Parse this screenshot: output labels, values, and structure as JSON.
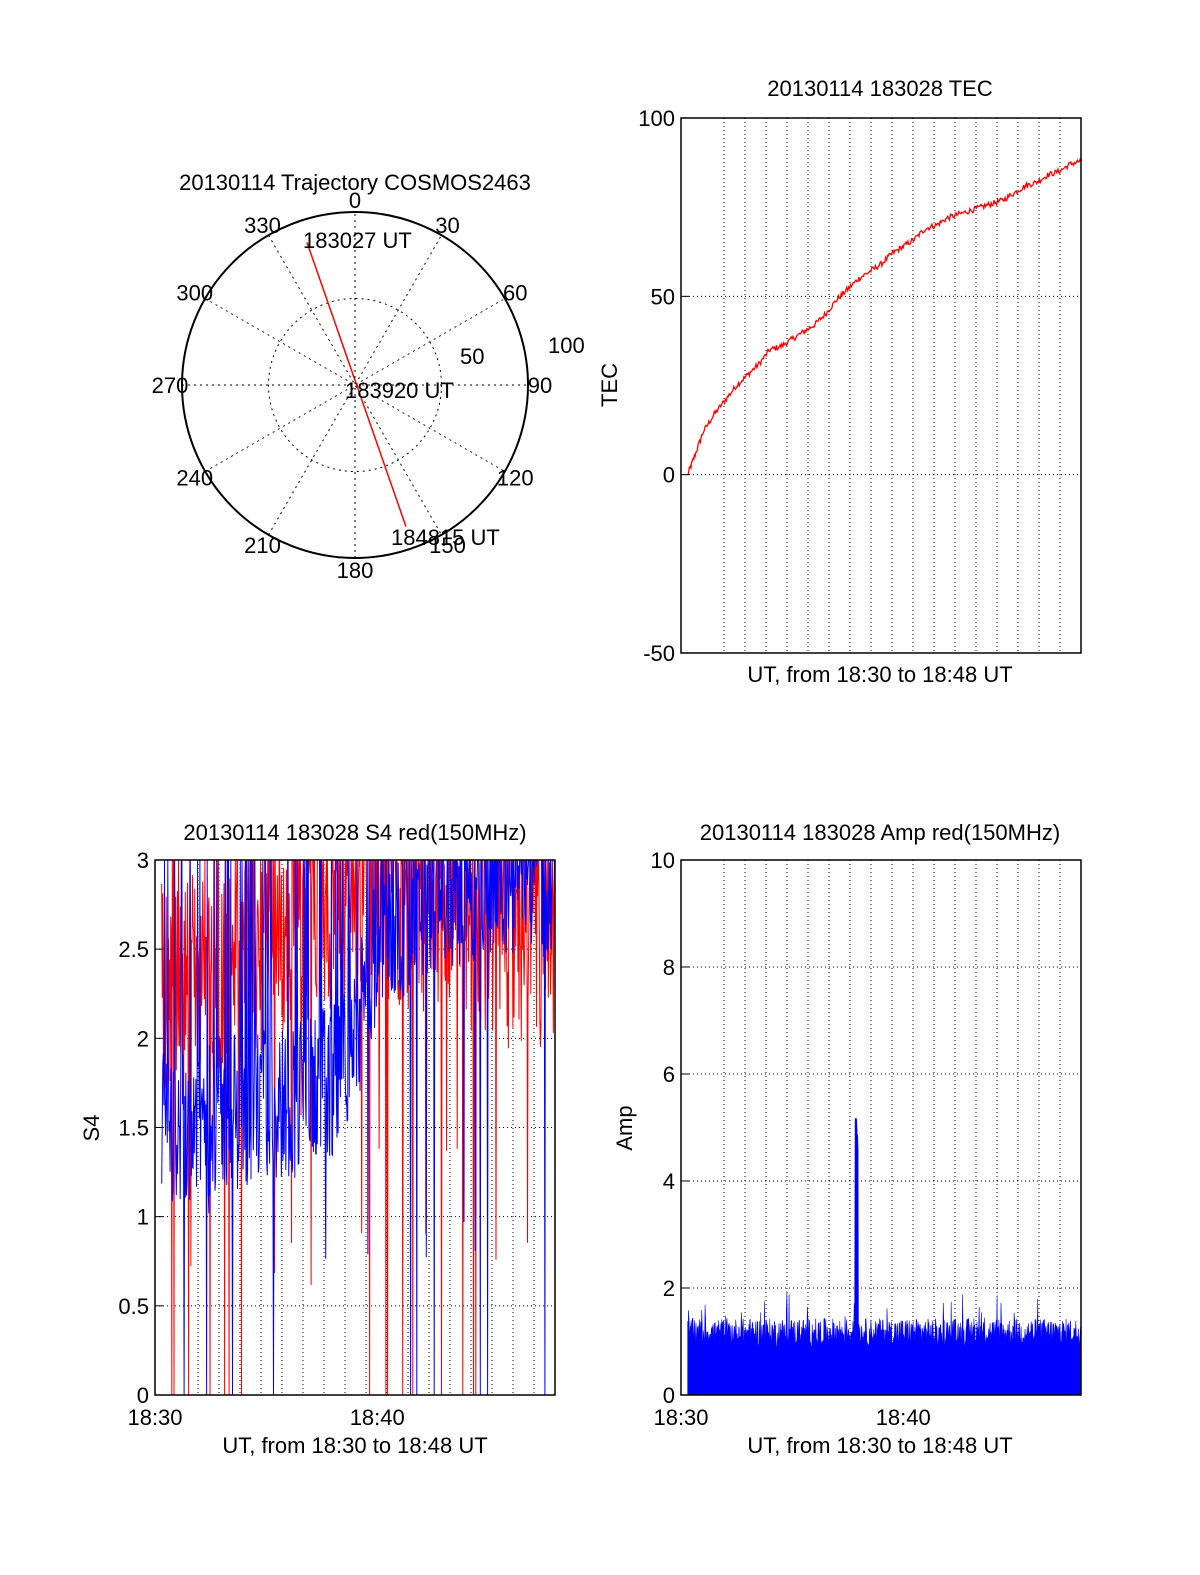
{
  "chart_data": [
    {
      "type": "polar",
      "title": "20130114 Trajectory COSMOS2463",
      "angle_labels": [
        "0",
        "30",
        "60",
        "90",
        "120",
        "150",
        "180",
        "210",
        "240",
        "270",
        "300",
        "330"
      ],
      "radial_labels": [
        "50",
        "100"
      ],
      "radial_range": [
        0,
        100
      ],
      "grid": true,
      "trajectory": {
        "color": "#ff0000",
        "start": {
          "label": "183027 UT",
          "azimuth": 341.4,
          "zenith": 87
        },
        "mid": {
          "label": "183920 UT",
          "azimuth": 0,
          "zenith": 0
        },
        "end": {
          "label": "184815 UT",
          "azimuth": 160.2,
          "zenith": 87
        }
      }
    },
    {
      "type": "line",
      "title": "20130114 183028 TEC",
      "xlabel": "UT, from 18:30 to 18:48 UT",
      "ylabel": "TEC",
      "xlim": [
        0,
        18
      ],
      "ylim": [
        -50,
        100
      ],
      "yticks": [
        "-50",
        "0",
        "50",
        "100"
      ],
      "xticks": [],
      "grid": true,
      "series": [
        {
          "color": "#ff0000",
          "x": [
            0.3,
            0.6,
            1,
            1.5,
            2,
            2.5,
            3,
            3.5,
            4,
            4.5,
            5,
            5.5,
            6,
            6.5,
            7,
            7.5,
            8,
            8.5,
            9,
            9.5,
            10,
            10.5,
            11,
            11.5,
            12,
            12.5,
            13,
            13.5,
            14,
            14.5,
            15,
            15.5,
            16,
            16.5,
            17,
            17.5,
            18
          ],
          "values": [
            0,
            5,
            12,
            17,
            21,
            25,
            28,
            31,
            35,
            36,
            38,
            40,
            42,
            45,
            49,
            52,
            55,
            57,
            59,
            62,
            64,
            66,
            69,
            70,
            72,
            73,
            74,
            75,
            76,
            77,
            79,
            81,
            82,
            84,
            85,
            87,
            88
          ]
        }
      ]
    },
    {
      "type": "line",
      "title": "20130114 183028 S4 red(150MHz)",
      "xlabel": "UT, from 18:30 to 18:48 UT",
      "ylabel": "S4",
      "xlim": [
        0,
        18
      ],
      "ylim": [
        0,
        3
      ],
      "yticks": [
        "0",
        "0.5",
        "1",
        "1.5",
        "2",
        "2.5",
        "3"
      ],
      "xticks": [
        {
          "value": 0,
          "label": "18:30"
        },
        {
          "value": 10,
          "label": "18:40"
        }
      ],
      "grid": true,
      "series": [
        {
          "color": "#ff0000",
          "trend": [
            [
              0,
              2.3
            ],
            [
              3,
              2.4
            ],
            [
              6,
              2.6
            ],
            [
              8,
              2.7
            ],
            [
              10,
              2.8
            ],
            [
              13,
              2.7
            ],
            [
              15,
              2.6
            ],
            [
              18,
              2.4
            ]
          ]
        },
        {
          "color": "#0000ff",
          "trend": [
            [
              0,
              1.5
            ],
            [
              2,
              1.55
            ],
            [
              4,
              1.6
            ],
            [
              6,
              1.65
            ],
            [
              8,
              1.75
            ],
            [
              9,
              2.0
            ],
            [
              10,
              2.5
            ],
            [
              12,
              2.8
            ],
            [
              15,
              2.9
            ],
            [
              18,
              2.9
            ]
          ]
        }
      ]
    },
    {
      "type": "line",
      "title": "20130114 183028 Amp red(150MHz)",
      "xlabel": "UT, from 18:30 to 18:48 UT",
      "ylabel": "Amp",
      "xlim": [
        0,
        18
      ],
      "ylim": [
        0,
        10
      ],
      "yticks": [
        "0",
        "2",
        "4",
        "6",
        "8",
        "10"
      ],
      "xticks": [
        {
          "value": 0,
          "label": "18:30"
        },
        {
          "value": 10,
          "label": "18:40"
        }
      ],
      "grid": true,
      "series": [
        {
          "color": "#0000ff",
          "baseline": 1.05,
          "spike": {
            "x": 7.9,
            "value": 5.2
          }
        }
      ]
    }
  ]
}
